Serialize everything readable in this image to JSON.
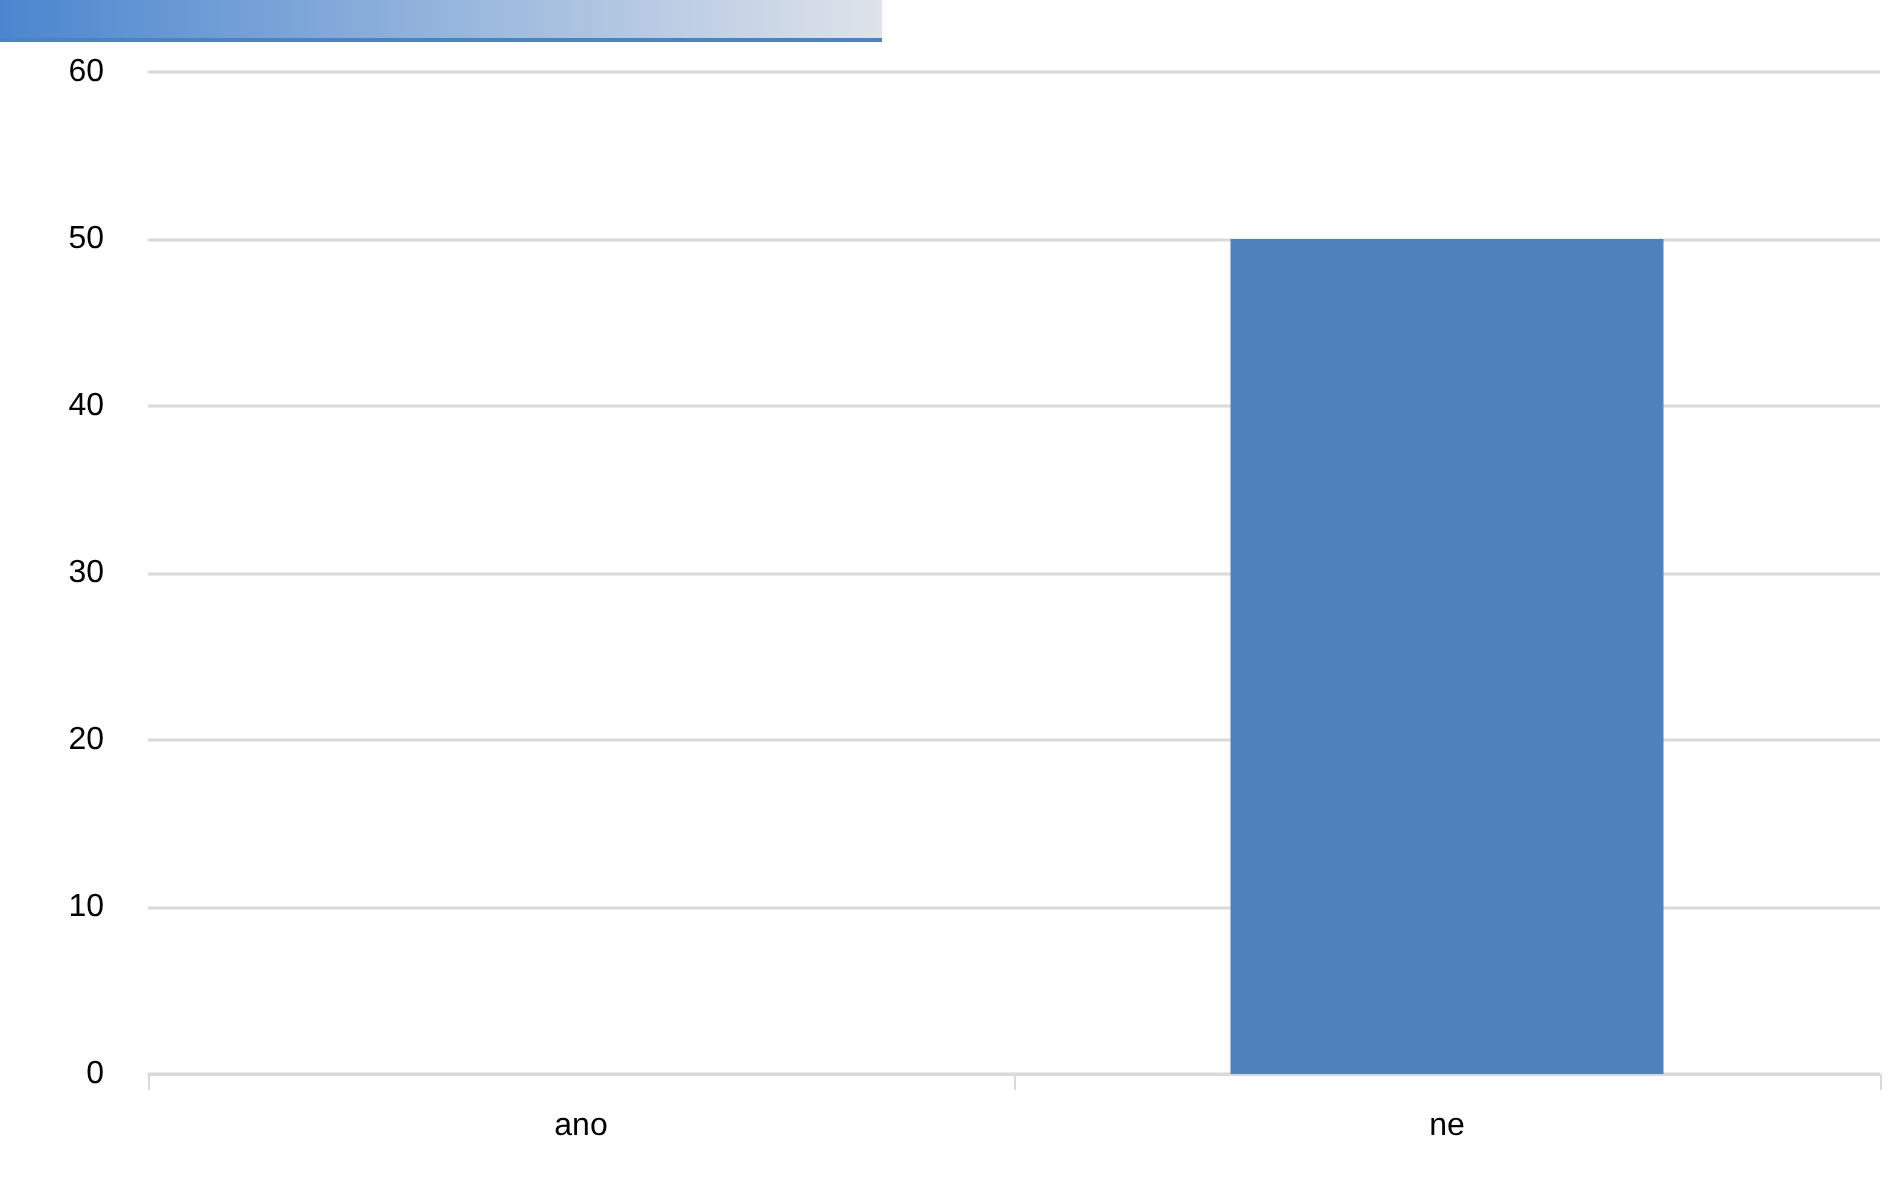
{
  "chart_data": {
    "type": "bar",
    "categories": [
      "ano",
      "ne"
    ],
    "values": [
      0,
      50
    ],
    "color": "#4f81bd",
    "ylim": [
      0,
      60
    ],
    "yticks": [
      0,
      10,
      20,
      30,
      40,
      50,
      60
    ],
    "grid": "y"
  }
}
